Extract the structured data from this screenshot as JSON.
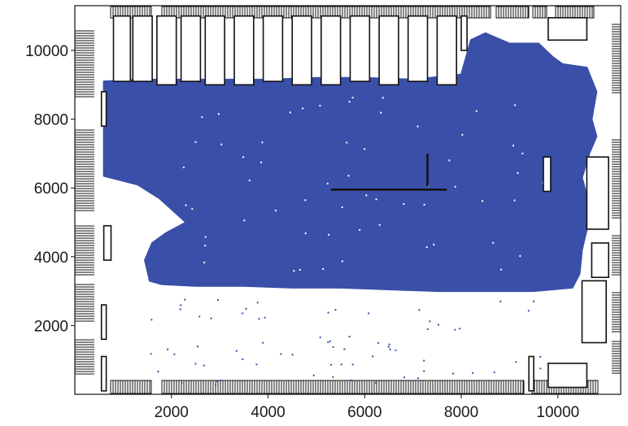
{
  "chart_data": {
    "type": "scatter",
    "title": "",
    "xlabel": "",
    "ylabel": "",
    "xlim": [
      0,
      11300
    ],
    "ylim": [
      0,
      11300
    ],
    "x_ticks": [
      2000,
      4000,
      6000,
      8000,
      10000
    ],
    "y_ticks": [
      2000,
      4000,
      6000,
      8000,
      10000
    ],
    "x_tick_labels": [
      "2000",
      "4000",
      "6000",
      "8000",
      "10000"
    ],
    "y_tick_labels": [
      "2000",
      "4000",
      "6000",
      "8000",
      "10000"
    ],
    "grid": false,
    "legend": null,
    "colors": {
      "point_cloud": "#3a4fa8",
      "outline": "#111111",
      "tick_label": "#1a1a1a"
    },
    "point_cloud_outline": [
      [
        600,
        9100
      ],
      [
        1400,
        9150
      ],
      [
        2200,
        9150
      ],
      [
        3000,
        9150
      ],
      [
        4000,
        9150
      ],
      [
        5000,
        9200
      ],
      [
        6000,
        9200
      ],
      [
        7000,
        9150
      ],
      [
        8000,
        9300
      ],
      [
        8200,
        10300
      ],
      [
        8500,
        10500
      ],
      [
        9000,
        10200
      ],
      [
        9600,
        10200
      ],
      [
        9900,
        9800
      ],
      [
        10100,
        9600
      ],
      [
        10600,
        9500
      ],
      [
        10800,
        8800
      ],
      [
        10700,
        8000
      ],
      [
        10800,
        7500
      ],
      [
        10650,
        7000
      ],
      [
        10500,
        6300
      ],
      [
        10650,
        5500
      ],
      [
        10600,
        4800
      ],
      [
        10500,
        4200
      ],
      [
        10450,
        3500
      ],
      [
        10300,
        3100
      ],
      [
        9500,
        3000
      ],
      [
        8500,
        3000
      ],
      [
        7500,
        3000
      ],
      [
        6500,
        3050
      ],
      [
        5500,
        3100
      ],
      [
        4500,
        3100
      ],
      [
        3500,
        3150
      ],
      [
        2500,
        3150
      ],
      [
        1800,
        3200
      ],
      [
        1550,
        3300
      ],
      [
        1450,
        3900
      ],
      [
        1600,
        4400
      ],
      [
        1900,
        4700
      ],
      [
        2300,
        5000
      ],
      [
        1750,
        5700
      ],
      [
        1300,
        6100
      ],
      [
        600,
        6350
      ],
      [
        600,
        7000
      ],
      [
        600,
        7700
      ],
      [
        600,
        8400
      ]
    ],
    "line_segments": [
      {
        "x": [
          5300,
          7700
        ],
        "y": [
          5950,
          5950
        ]
      },
      {
        "x": [
          7300,
          7300
        ],
        "y": [
          6050,
          7000
        ]
      }
    ],
    "outlined_rectangles": [
      {
        "x": [
          800,
          1150
        ],
        "y": [
          9100,
          11000
        ]
      },
      {
        "x": [
          1200,
          1600
        ],
        "y": [
          9100,
          11000
        ]
      },
      {
        "x": [
          1700,
          2100
        ],
        "y": [
          9000,
          11000
        ]
      },
      {
        "x": [
          2200,
          2600
        ],
        "y": [
          9100,
          11000
        ]
      },
      {
        "x": [
          2700,
          3100
        ],
        "y": [
          9000,
          11000
        ]
      },
      {
        "x": [
          3300,
          3700
        ],
        "y": [
          9000,
          11000
        ]
      },
      {
        "x": [
          3900,
          4300
        ],
        "y": [
          9100,
          11000
        ]
      },
      {
        "x": [
          4500,
          4900
        ],
        "y": [
          9000,
          11000
        ]
      },
      {
        "x": [
          5100,
          5500
        ],
        "y": [
          9000,
          11000
        ]
      },
      {
        "x": [
          5700,
          6100
        ],
        "y": [
          9100,
          11000
        ]
      },
      {
        "x": [
          6300,
          6700
        ],
        "y": [
          9000,
          11000
        ]
      },
      {
        "x": [
          6900,
          7300
        ],
        "y": [
          9100,
          11000
        ]
      },
      {
        "x": [
          7500,
          7900
        ],
        "y": [
          9000,
          11000
        ]
      },
      {
        "x": [
          8000,
          8120
        ],
        "y": [
          10000,
          11000
        ]
      },
      {
        "x": [
          9800,
          10600
        ],
        "y": [
          10300,
          10950
        ]
      },
      {
        "x": [
          550,
          650
        ],
        "y": [
          7800,
          8800
        ]
      },
      {
        "x": [
          600,
          750
        ],
        "y": [
          3900,
          4900
        ]
      },
      {
        "x": [
          550,
          650
        ],
        "y": [
          1600,
          2600
        ]
      },
      {
        "x": [
          550,
          650
        ],
        "y": [
          100,
          1100
        ]
      },
      {
        "x": [
          9700,
          9850
        ],
        "y": [
          5900,
          6900
        ]
      },
      {
        "x": [
          10600,
          11050
        ],
        "y": [
          4800,
          6900
        ]
      },
      {
        "x": [
          10700,
          11050
        ],
        "y": [
          3400,
          4400
        ]
      },
      {
        "x": [
          10500,
          11000
        ],
        "y": [
          1500,
          3300
        ]
      },
      {
        "x": [
          9400,
          9500
        ],
        "y": [
          100,
          1100
        ]
      },
      {
        "x": [
          9800,
          10600
        ],
        "y": [
          200,
          900
        ]
      }
    ]
  }
}
